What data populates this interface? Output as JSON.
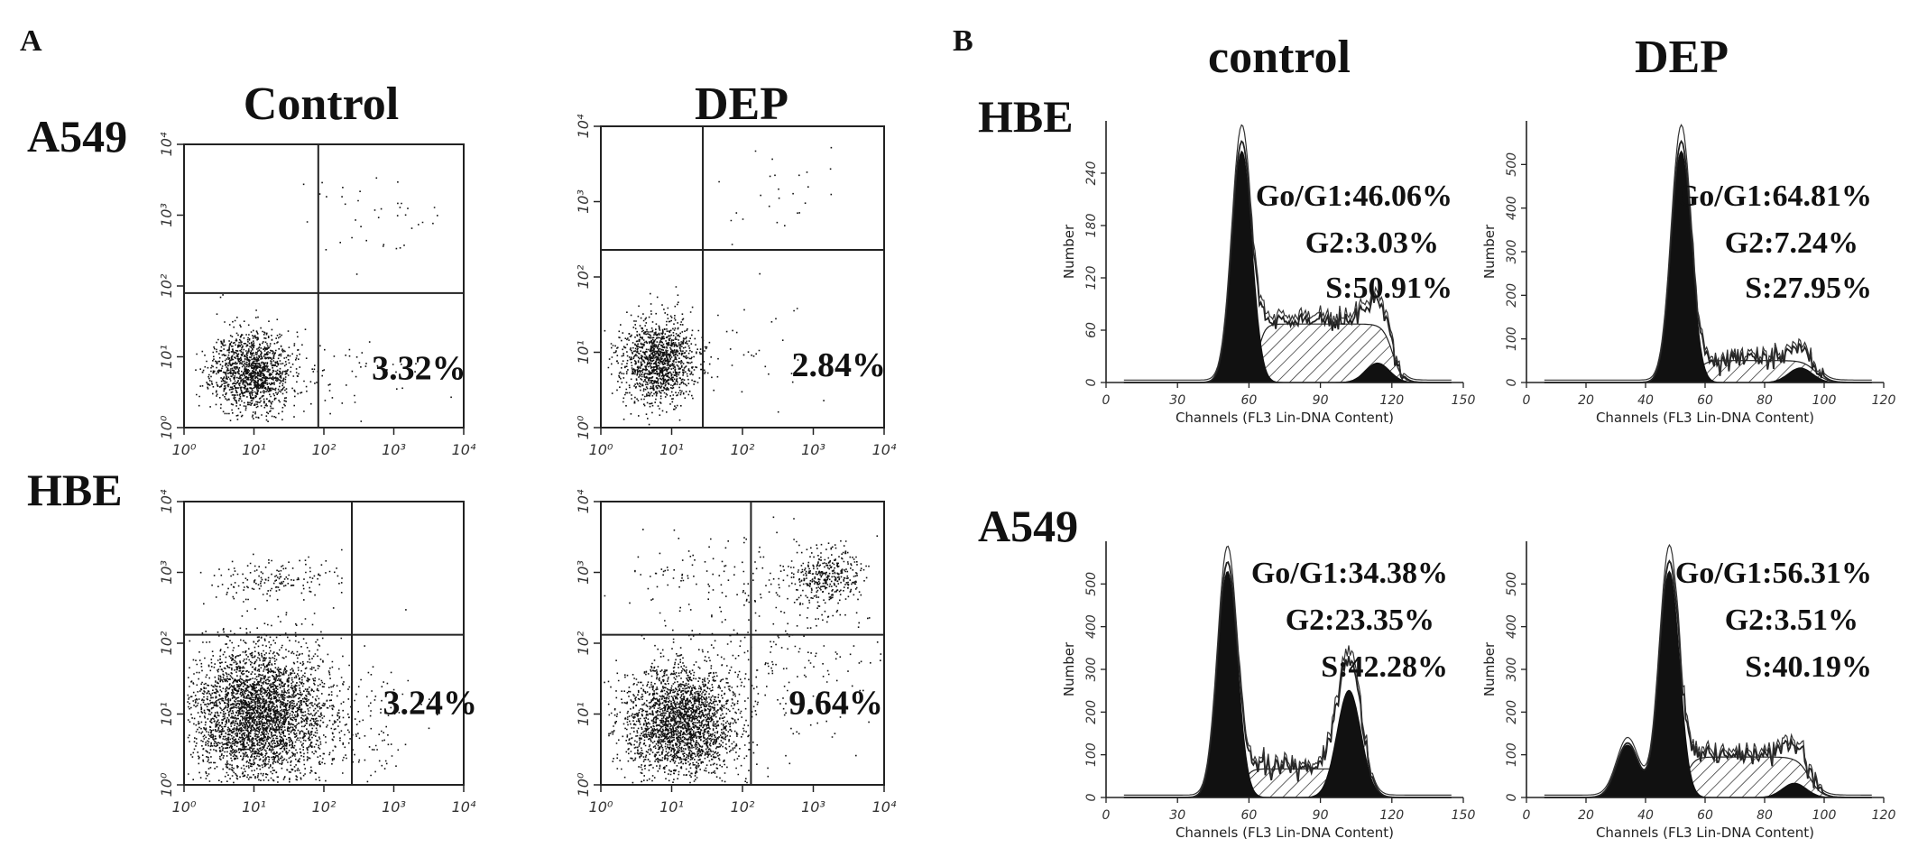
{
  "panel_a": {
    "letter": "A",
    "col_headers": [
      "Control",
      "DEP"
    ],
    "row_headers": [
      "A549",
      "HBE"
    ],
    "x_ticks": [
      "10⁰",
      "10¹",
      "10²",
      "10³",
      "10⁴"
    ],
    "y_ticks": [
      "10⁰",
      "10¹",
      "10²",
      "10³",
      "10⁴"
    ]
  },
  "panel_b": {
    "letter": "B",
    "col_headers": [
      "control",
      "DEP"
    ],
    "row_headers": [
      "HBE",
      "A549"
    ],
    "x_axis_label": "Channels (FL3 Lin-DNA Content)",
    "y_axis_label": "Number"
  },
  "chart_data": [
    {
      "id": "a1",
      "type": "scatter",
      "cell": "A549",
      "condition": "Control",
      "quadrant_percent": "3.32%",
      "xlim": [
        1,
        10000
      ],
      "ylim": [
        1,
        10000
      ],
      "x_scale": "log",
      "y_scale": "log"
    },
    {
      "id": "a2",
      "type": "scatter",
      "cell": "A549",
      "condition": "DEP",
      "quadrant_percent": "2.84%",
      "xlim": [
        1,
        10000
      ],
      "ylim": [
        1,
        10000
      ],
      "x_scale": "log",
      "y_scale": "log"
    },
    {
      "id": "a3",
      "type": "scatter",
      "cell": "HBE",
      "condition": "Control",
      "quadrant_percent": "3.24%",
      "xlim": [
        1,
        10000
      ],
      "ylim": [
        1,
        10000
      ],
      "x_scale": "log",
      "y_scale": "log"
    },
    {
      "id": "a4",
      "type": "scatter",
      "cell": "HBE",
      "condition": "DEP",
      "quadrant_percent": "9.64%",
      "xlim": [
        1,
        10000
      ],
      "ylim": [
        1,
        10000
      ],
      "x_scale": "log",
      "y_scale": "log"
    },
    {
      "id": "b1",
      "type": "area",
      "cell": "HBE",
      "condition": "control",
      "g0g1": "Go/G1:46.06%",
      "g2": "G2:3.03%",
      "s": "S:50.91%",
      "x_ticks": [
        "0",
        "30",
        "60",
        "90",
        "120",
        "150"
      ],
      "xlim": [
        0,
        150
      ],
      "y_ticks": [
        "0",
        "60",
        "120",
        "180",
        "240"
      ],
      "ylim": [
        0,
        300
      ],
      "g1_peak": 57,
      "g2_peak": 114
    },
    {
      "id": "b2",
      "type": "area",
      "cell": "HBE",
      "condition": "DEP",
      "g0g1": "Go/G1:64.81%",
      "g2": "G2:7.24%",
      "s": "S:27.95%",
      "x_ticks": [
        "0",
        "20",
        "40",
        "60",
        "80",
        "100",
        "120"
      ],
      "xlim": [
        0,
        120
      ],
      "y_ticks": [
        "0",
        "100",
        "200",
        "300",
        "400",
        "500"
      ],
      "ylim": [
        0,
        600
      ],
      "g1_peak": 52,
      "g2_peak": 92
    },
    {
      "id": "b3",
      "type": "area",
      "cell": "A549",
      "condition": "control",
      "g0g1": "Go/G1:34.38%",
      "g2": "G2:23.35%",
      "s": "S:42.28%",
      "x_ticks": [
        "0",
        "30",
        "60",
        "90",
        "120",
        "150"
      ],
      "xlim": [
        0,
        150
      ],
      "y_ticks": [
        "0",
        "100",
        "200",
        "300",
        "400",
        "500"
      ],
      "ylim": [
        0,
        600
      ],
      "g1_peak": 51,
      "g2_peak": 102
    },
    {
      "id": "b4",
      "type": "area",
      "cell": "A549",
      "condition": "DEP",
      "g0g1": "Go/G1:56.31%",
      "g2": "G2:3.51%",
      "s": "S:40.19%",
      "x_ticks": [
        "0",
        "20",
        "40",
        "60",
        "80",
        "100",
        "120"
      ],
      "xlim": [
        0,
        120
      ],
      "y_ticks": [
        "0",
        "100",
        "200",
        "300",
        "400",
        "500"
      ],
      "ylim": [
        0,
        600
      ],
      "g1_peak": 48,
      "g2_peak": 90
    }
  ]
}
